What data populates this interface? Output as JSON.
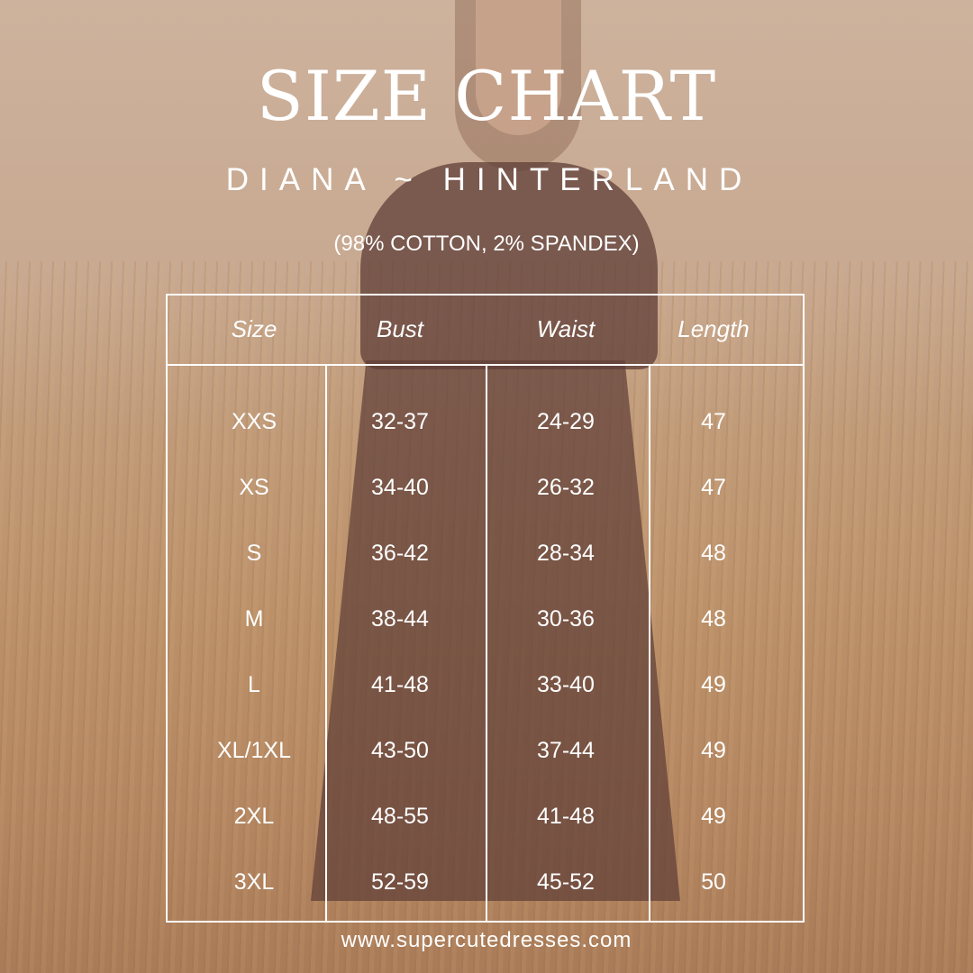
{
  "title": "SIZE CHART",
  "subtitle": "DIANA ~ HINTERLAND",
  "fabric": "(98% COTTON, 2% SPANDEX)",
  "table": {
    "headers": [
      "Size",
      "Bust",
      "Waist",
      "Length"
    ],
    "rows": [
      [
        "XXS",
        "32-37",
        "24-29",
        "47"
      ],
      [
        "XS",
        "34-40",
        "26-32",
        "47"
      ],
      [
        "S",
        "36-42",
        "28-34",
        "48"
      ],
      [
        "M",
        "38-44",
        "30-36",
        "48"
      ],
      [
        "L",
        "41-48",
        "33-40",
        "49"
      ],
      [
        "XL/1XL",
        "43-50",
        "37-44",
        "49"
      ],
      [
        "2XL",
        "48-55",
        "41-48",
        "49"
      ],
      [
        "3XL",
        "52-59",
        "45-52",
        "50"
      ]
    ]
  },
  "footer": "www.supercutedresses.com"
}
